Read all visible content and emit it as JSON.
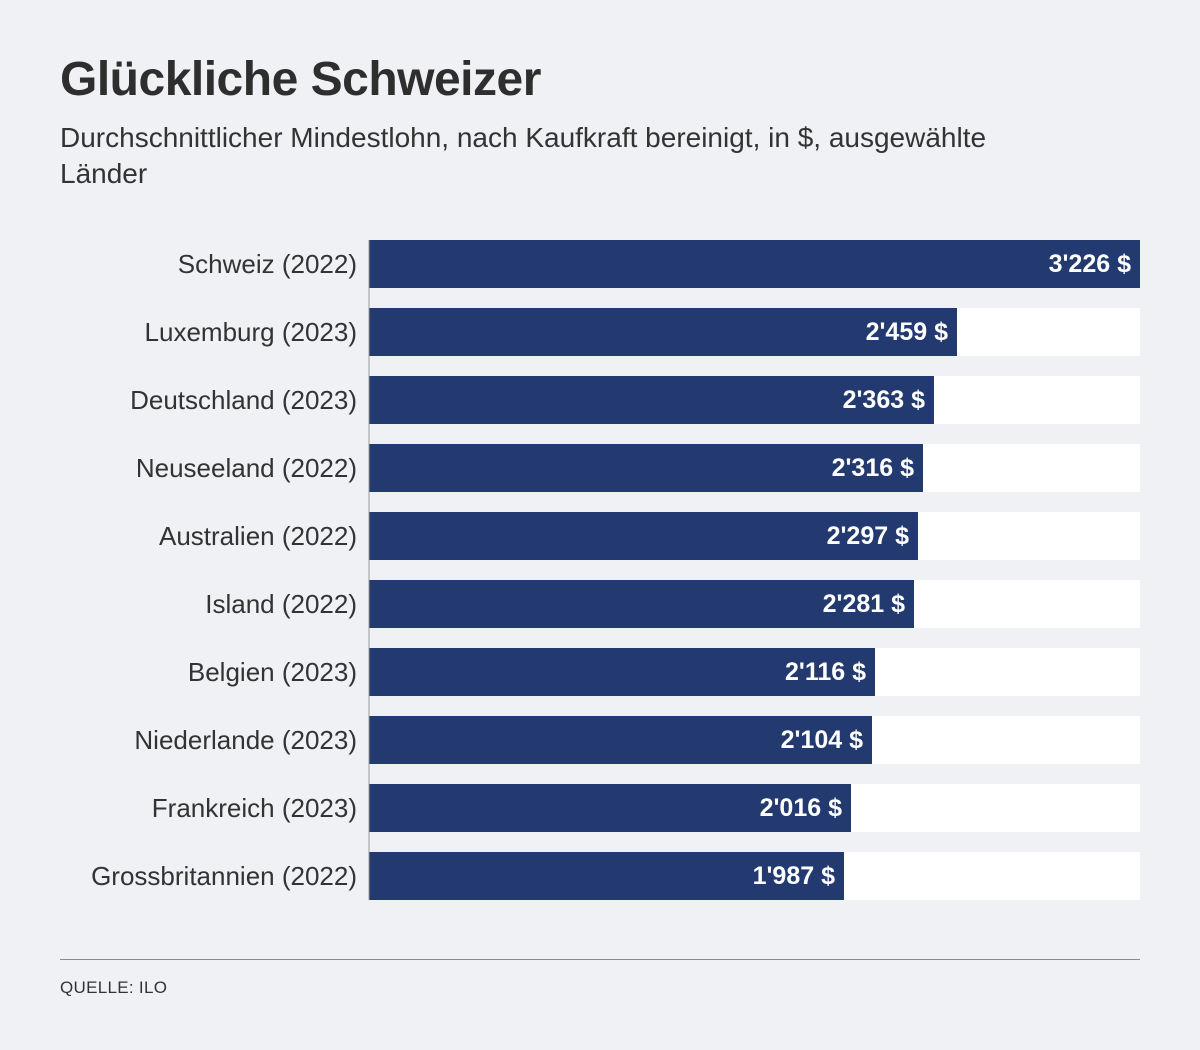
{
  "title": "Glückliche Schweizer",
  "subtitle": "Durchschnittlicher Mindestlohn, nach Kaufkraft bereinigt, in $, ausgewählte Länder",
  "source": "QUELLE: ILO",
  "colors": {
    "bar": "#233a70",
    "track": "#ffffff",
    "background": "#f0f1f5",
    "bar_label": "#ffffff",
    "category_label": "#333333",
    "axis": "#999999"
  },
  "chart_data": {
    "type": "bar",
    "orientation": "horizontal",
    "title": "Glückliche Schweizer",
    "subtitle": "Durchschnittlicher Mindestlohn, nach Kaufkraft bereinigt, in $, ausgewählte Länder",
    "categories": [
      "Schweiz (2022)",
      "Luxemburg (2023)",
      "Deutschland (2023)",
      "Neuseeland (2022)",
      "Australien (2022)",
      "Island (2022)",
      "Belgien (2023)",
      "Niederlande (2023)",
      "Frankreich (2023)",
      "Grossbritannien (2022)"
    ],
    "values": [
      3226,
      2459,
      2363,
      2316,
      2297,
      2281,
      2116,
      2104,
      2016,
      1987
    ],
    "value_labels": [
      "3'226 $",
      "2'459 $",
      "2'363 $",
      "2'316 $",
      "2'297 $",
      "2'281 $",
      "2'116 $",
      "2'104 $",
      "2'016 $",
      "1'987 $"
    ],
    "xlim": [
      0,
      3226
    ],
    "grid": false,
    "legend": "none"
  }
}
